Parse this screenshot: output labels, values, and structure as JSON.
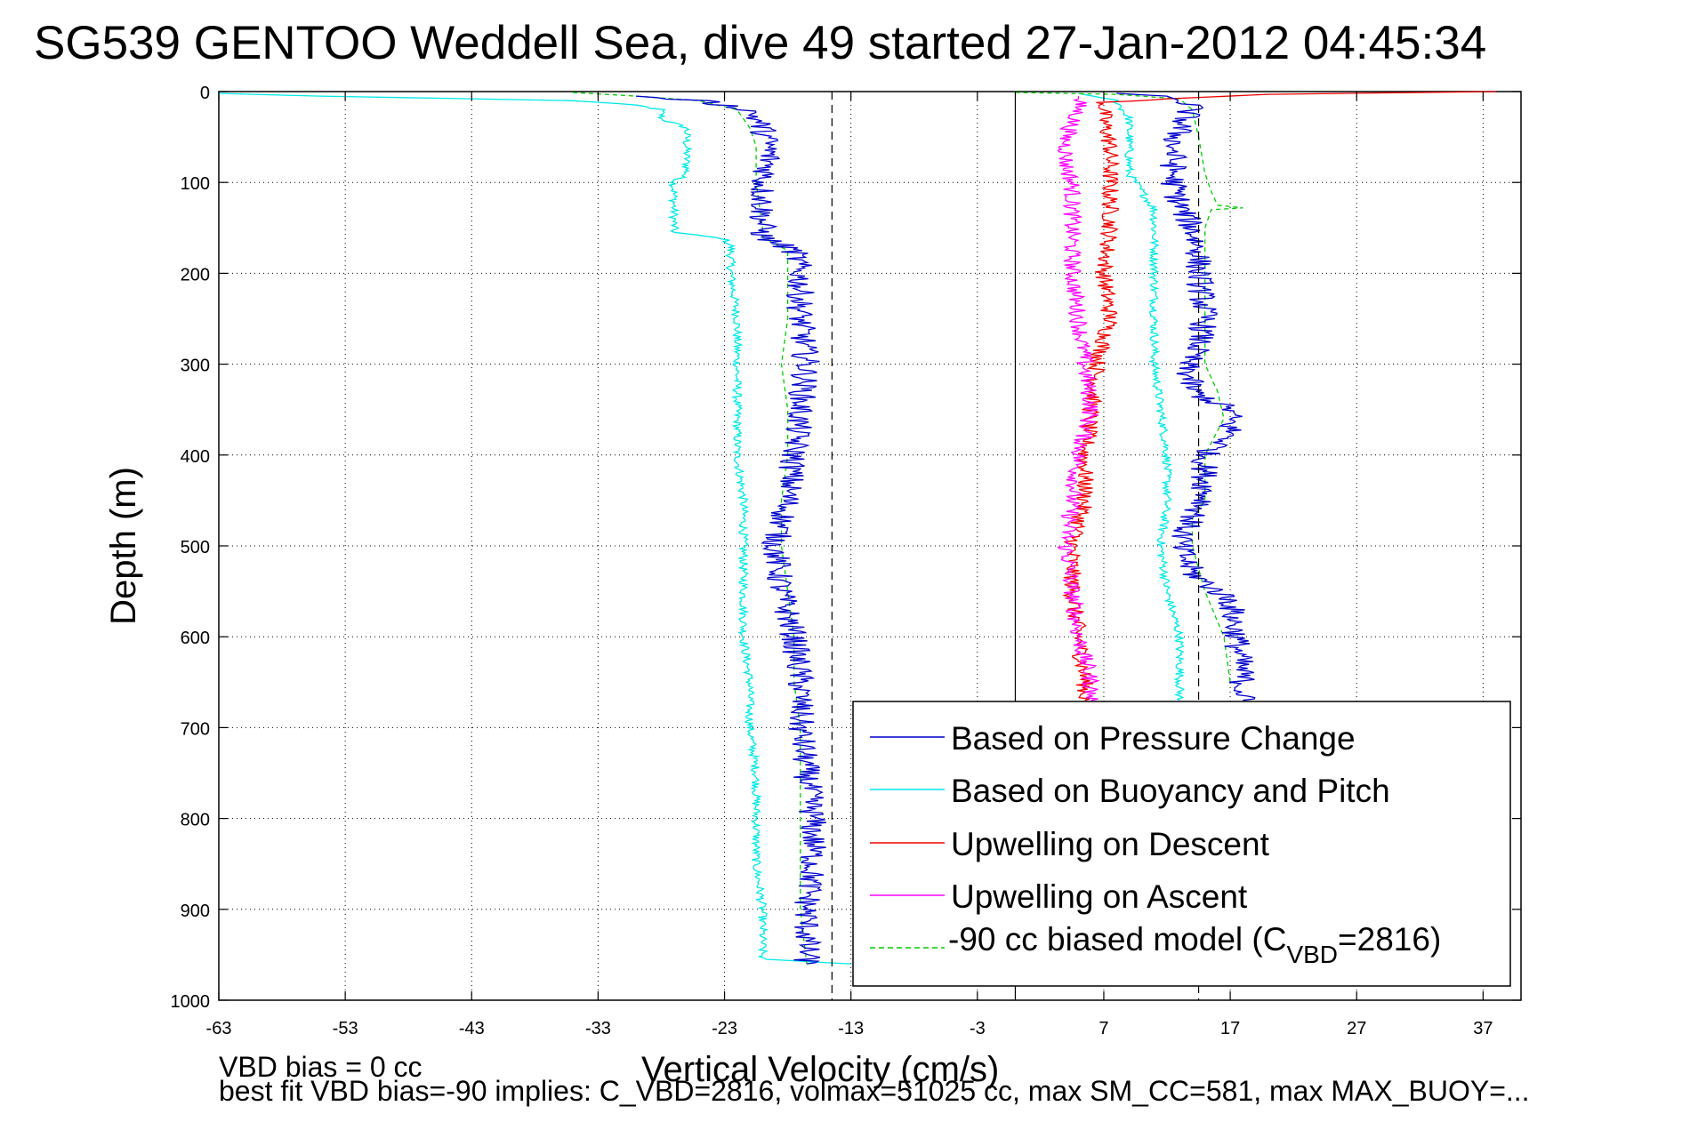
{
  "chart_data": {
    "type": "line",
    "title": "SG539 GENTOO Weddell Sea, dive 49 started 27-Jan-2012 04:45:34",
    "xlabel": "Vertical Velocity (cm/s)",
    "ylabel": "Depth (m)",
    "xlim": [
      -63,
      40
    ],
    "ylim": [
      0,
      1000
    ],
    "y_reversed": true,
    "grid": true,
    "x_ticks": [
      -63,
      -53,
      -43,
      -33,
      -23,
      -13,
      -3,
      7,
      17,
      27,
      37
    ],
    "y_ticks": [
      0,
      100,
      200,
      300,
      400,
      500,
      600,
      700,
      800,
      900,
      1000
    ],
    "legend_position": "bottom-right",
    "reference_lines": [
      {
        "x": -14.5,
        "style": "dashed"
      },
      {
        "x": 0,
        "style": "solid"
      },
      {
        "x": 14.5,
        "style": "dashed"
      }
    ],
    "series": [
      {
        "name": "Based on Pressure Change",
        "color": "#0000cc",
        "noise": 1.1,
        "points": [
          [
            -30,
            5
          ],
          [
            -25,
            10
          ],
          [
            -21,
            20
          ],
          [
            -20,
            40
          ],
          [
            -19.5,
            60
          ],
          [
            -19.5,
            80
          ],
          [
            -20,
            100
          ],
          [
            -20,
            120
          ],
          [
            -20,
            150
          ],
          [
            -20,
            160
          ],
          [
            -17.5,
            175
          ],
          [
            -17,
            200
          ],
          [
            -17,
            250
          ],
          [
            -16.5,
            300
          ],
          [
            -17,
            350
          ],
          [
            -17.5,
            400
          ],
          [
            -18,
            450
          ],
          [
            -19,
            500
          ],
          [
            -18.5,
            550
          ],
          [
            -17.5,
            600
          ],
          [
            -17,
            650
          ],
          [
            -17,
            700
          ],
          [
            -16.5,
            750
          ],
          [
            -16,
            800
          ],
          [
            -16,
            850
          ],
          [
            -16.5,
            900
          ],
          [
            -16.5,
            950
          ],
          [
            -16.5,
            960
          ]
        ],
        "points2": [
          [
            8,
            2
          ],
          [
            12,
            5
          ],
          [
            14,
            15
          ],
          [
            13,
            40
          ],
          [
            12.5,
            60
          ],
          [
            12.5,
            80
          ],
          [
            12.5,
            100
          ],
          [
            13,
            125
          ],
          [
            14,
            150
          ],
          [
            14.5,
            175
          ],
          [
            14.5,
            200
          ],
          [
            15,
            250
          ],
          [
            14.5,
            280
          ],
          [
            13.5,
            300
          ],
          [
            14,
            330
          ],
          [
            17,
            350
          ],
          [
            17,
            380
          ],
          [
            15,
            400
          ],
          [
            15,
            450
          ],
          [
            13.5,
            480
          ],
          [
            13,
            500
          ],
          [
            14,
            530
          ],
          [
            17,
            560
          ],
          [
            17.5,
            600
          ],
          [
            18,
            650
          ],
          [
            18,
            670
          ]
        ]
      },
      {
        "name": "Based on Buoyancy and Pitch",
        "color": "#00e8e8",
        "noise": 0.35,
        "points": [
          [
            -63,
            2
          ],
          [
            -55,
            5
          ],
          [
            -35,
            10
          ],
          [
            -30,
            15
          ],
          [
            -28,
            20
          ],
          [
            -28,
            30
          ],
          [
            -26,
            40
          ],
          [
            -26,
            60
          ],
          [
            -26,
            80
          ],
          [
            -26,
            90
          ],
          [
            -27,
            100
          ],
          [
            -27,
            120
          ],
          [
            -27,
            155
          ],
          [
            -23,
            162
          ],
          [
            -22.5,
            170
          ],
          [
            -22.5,
            200
          ],
          [
            -22,
            250
          ],
          [
            -22,
            300
          ],
          [
            -22,
            350
          ],
          [
            -22,
            400
          ],
          [
            -21.5,
            450
          ],
          [
            -21.5,
            500
          ],
          [
            -21.5,
            550
          ],
          [
            -21.5,
            600
          ],
          [
            -21,
            650
          ],
          [
            -21,
            700
          ],
          [
            -20.5,
            750
          ],
          [
            -20.5,
            800
          ],
          [
            -20.5,
            850
          ],
          [
            -20,
            900
          ],
          [
            -20,
            955
          ],
          [
            -13,
            960
          ]
        ],
        "points2": [
          [
            5,
            2
          ],
          [
            8,
            10
          ],
          [
            9,
            30
          ],
          [
            9,
            60
          ],
          [
            9,
            90
          ],
          [
            10,
            110
          ],
          [
            11,
            130
          ],
          [
            11,
            160
          ],
          [
            11,
            180
          ],
          [
            11,
            200
          ],
          [
            11,
            250
          ],
          [
            11,
            300
          ],
          [
            11.5,
            350
          ],
          [
            12,
            400
          ],
          [
            12,
            450
          ],
          [
            11.5,
            500
          ],
          [
            12,
            550
          ],
          [
            13,
            600
          ],
          [
            13,
            650
          ],
          [
            13,
            670
          ]
        ]
      },
      {
        "name": "Upwelling on Descent",
        "color": "#ee0000",
        "noise": 0.7,
        "points": [
          [
            38,
            0
          ],
          [
            20,
            3
          ],
          [
            12,
            8
          ],
          [
            7,
            12
          ],
          [
            7,
            30
          ],
          [
            7.5,
            60
          ],
          [
            7.5,
            100
          ],
          [
            7.5,
            150
          ],
          [
            7,
            200
          ],
          [
            7.5,
            250
          ],
          [
            6.5,
            300
          ],
          [
            6,
            350
          ],
          [
            5.5,
            400
          ],
          [
            5.5,
            450
          ],
          [
            4.5,
            500
          ],
          [
            4.5,
            550
          ],
          [
            5,
            600
          ],
          [
            5.5,
            650
          ],
          [
            5.5,
            670
          ]
        ]
      },
      {
        "name": "Upwelling on Ascent",
        "color": "#ff00ff",
        "noise": 0.7,
        "points": [
          [
            5,
            5
          ],
          [
            5,
            20
          ],
          [
            4,
            50
          ],
          [
            4,
            80
          ],
          [
            4.5,
            100
          ],
          [
            4.5,
            150
          ],
          [
            4.5,
            200
          ],
          [
            5,
            250
          ],
          [
            5.5,
            300
          ],
          [
            6,
            350
          ],
          [
            5,
            400
          ],
          [
            4.5,
            450
          ],
          [
            4,
            500
          ],
          [
            4.5,
            550
          ],
          [
            5,
            600
          ],
          [
            6,
            650
          ],
          [
            6,
            670
          ]
        ]
      },
      {
        "name": "-90 cc biased model (C<sub>VBD</sub>=2816)",
        "color": "#00cc00",
        "style": "dashed",
        "noise": 0,
        "points": [
          [
            -35,
            1
          ],
          [
            -30,
            5
          ],
          [
            -25,
            10
          ],
          [
            -22,
            20
          ],
          [
            -21,
            40
          ],
          [
            -20.5,
            60
          ],
          [
            -20.5,
            100
          ],
          [
            -20,
            150
          ],
          [
            -20,
            160
          ],
          [
            -18,
            175
          ],
          [
            -18,
            200
          ],
          [
            -18,
            250
          ],
          [
            -18.5,
            300
          ],
          [
            -18,
            350
          ],
          [
            -18,
            400
          ],
          [
            -18.5,
            450
          ],
          [
            -18.5,
            500
          ],
          [
            -18,
            550
          ],
          [
            -17.5,
            600
          ],
          [
            -17.5,
            650
          ],
          [
            -17,
            700
          ],
          [
            -17,
            750
          ],
          [
            -17,
            800
          ],
          [
            -17,
            850
          ],
          [
            -17,
            900
          ],
          [
            -16.5,
            960
          ]
        ],
        "points2": [
          [
            0,
            1
          ],
          [
            8,
            3
          ],
          [
            13,
            8
          ],
          [
            14,
            20
          ],
          [
            14.5,
            50
          ],
          [
            15,
            90
          ],
          [
            15.5,
            110
          ],
          [
            16,
            125
          ],
          [
            18,
            128
          ],
          [
            15.5,
            130
          ],
          [
            15,
            150
          ],
          [
            15,
            200
          ],
          [
            15,
            250
          ],
          [
            15,
            300
          ],
          [
            16,
            330
          ],
          [
            16.5,
            360
          ],
          [
            15,
            400
          ],
          [
            15,
            450
          ],
          [
            14,
            470
          ],
          [
            14,
            500
          ],
          [
            15,
            550
          ],
          [
            16.5,
            600
          ],
          [
            17,
            650
          ]
        ]
      }
    ]
  },
  "legend": {
    "items": [
      {
        "label": "Based on Pressure Change",
        "color": "#0000cc",
        "style": "solid"
      },
      {
        "label": "Based on Buoyancy and Pitch",
        "color": "#00e8e8",
        "style": "solid"
      },
      {
        "label": "Upwelling on Descent",
        "color": "#ee0000",
        "style": "solid"
      },
      {
        "label": "Upwelling on Ascent",
        "color": "#ff00ff",
        "style": "solid"
      },
      {
        "label_main": "-90 cc biased model (C",
        "label_sub": "VBD",
        "label_tail": "=2816)",
        "color": "#00cc00",
        "style": "dashed"
      }
    ]
  },
  "notes": {
    "line1": "VBD bias = 0 cc",
    "line2": "best fit VBD bias=-90 implies: C_VBD=2816, volmax=51025 cc, max SM_CC=581, max MAX_BUOY=..."
  }
}
